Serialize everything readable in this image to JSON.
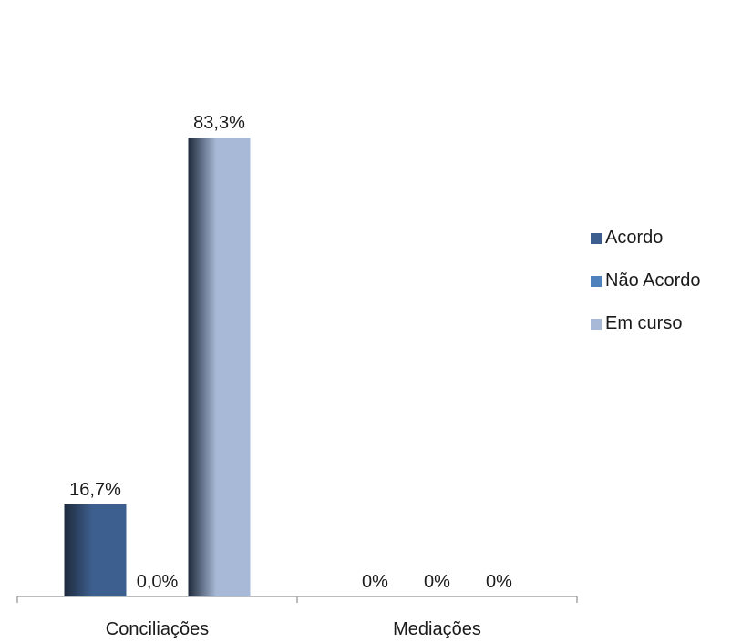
{
  "chart_data": {
    "type": "bar",
    "categories": [
      "Conciliações",
      "Mediações"
    ],
    "series": [
      {
        "name": "Acordo",
        "color": "#3d5f8f",
        "values": [
          16.7,
          0
        ],
        "labels": [
          "16,7%",
          "0%"
        ]
      },
      {
        "name": "Não Acordo",
        "color": "#4f81bd",
        "values": [
          0,
          0
        ],
        "labels": [
          "0,0%",
          "0%"
        ]
      },
      {
        "name": "Em curso",
        "color": "#a7b9d6",
        "values": [
          83.3,
          0
        ],
        "labels": [
          "83,3%",
          "0%"
        ]
      }
    ],
    "ylim": [
      0,
      100
    ],
    "grid": false,
    "legend_position": "right"
  }
}
